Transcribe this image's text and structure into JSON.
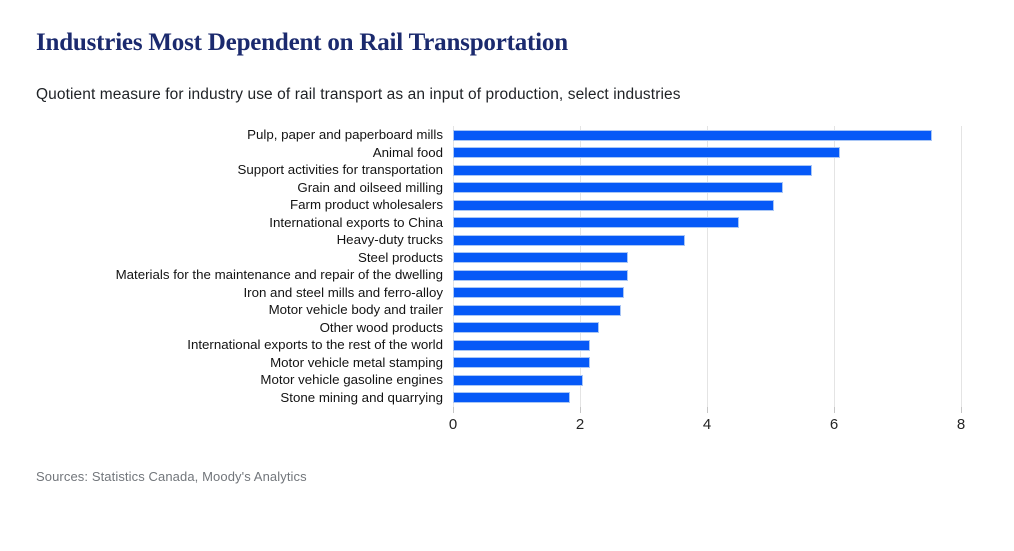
{
  "header": {
    "title": "Industries Most Dependent on Rail Transportation",
    "subtitle": "Quotient measure for industry use of rail transport as an input of production, select industries"
  },
  "chart_data": {
    "type": "bar",
    "orientation": "horizontal",
    "title": "Industries Most Dependent on Rail Transportation",
    "subtitle": "Quotient measure for industry use of rail transport as an input of production, select industries",
    "categories": [
      "Pulp, paper and paperboard mills",
      "Animal food",
      "Support activities for transportation",
      "Grain and oilseed milling",
      "Farm product wholesalers",
      "International exports to China",
      "Heavy-duty trucks",
      "Steel products",
      "Materials for the maintenance and repair of the dwelling",
      "Iron and steel mills and ferro-alloy",
      "Motor vehicle body and trailer",
      "Other wood products",
      "International exports to the rest of the world",
      "Motor vehicle metal stamping",
      "Motor vehicle gasoline engines",
      "Stone mining and quarrying"
    ],
    "values": [
      7.55,
      6.1,
      5.65,
      5.2,
      5.05,
      4.5,
      3.65,
      2.75,
      2.75,
      2.7,
      2.65,
      2.3,
      2.15,
      2.15,
      2.05,
      1.85
    ],
    "xlabel": "",
    "ylabel": "",
    "xlim": [
      0,
      8
    ],
    "xticks": [
      0,
      2,
      4,
      6,
      8
    ],
    "grid": true,
    "legend": false,
    "colors": {
      "bar": "#0659f7",
      "bar_stroke": "#a9c6f5",
      "title_text": "#1b2a6e",
      "gridline": "#e4e4e4"
    }
  },
  "footer": {
    "source": "Sources: Statistics Canada, Moody's Analytics"
  }
}
